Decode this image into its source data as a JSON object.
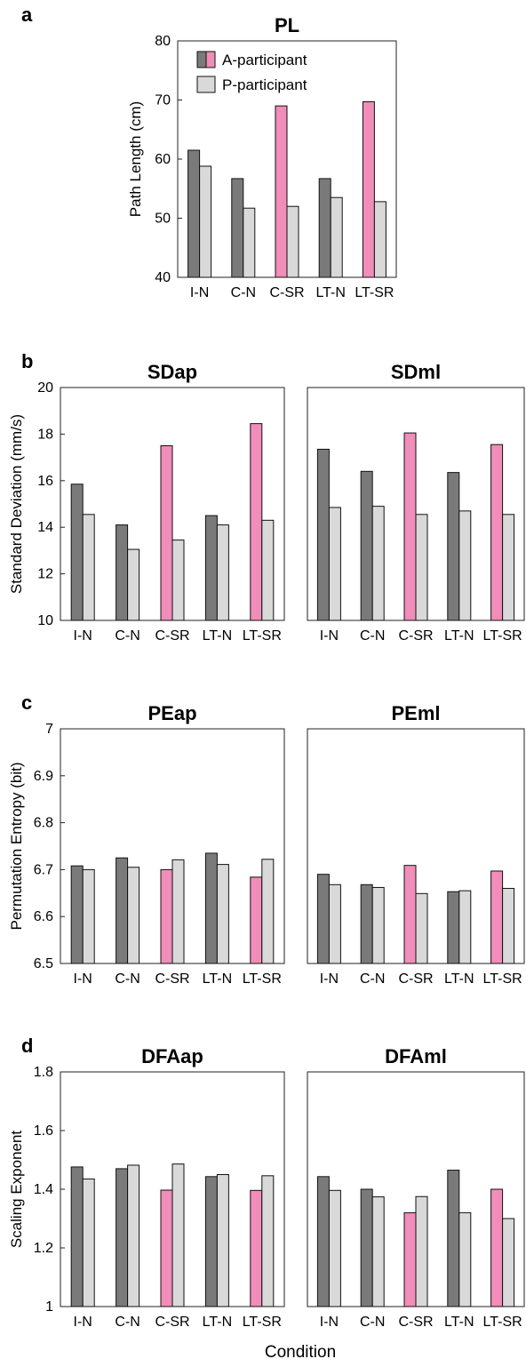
{
  "figure": {
    "xlabel": "Condition",
    "legend": {
      "placement": "top-left",
      "entries": [
        "A-participant",
        "P-participant"
      ]
    },
    "colors": {
      "a_normal": "#7a7a7a",
      "a_highlight": "#f08db8",
      "p": "#d9d9d9",
      "edge": "#111111"
    }
  },
  "chart_data": [
    {
      "panel": "a",
      "type": "bar",
      "title": "PL",
      "ylabel": "Path Length (cm)",
      "ylim": [
        40,
        80
      ],
      "yticks": [
        "40",
        "50",
        "60",
        "70",
        "80"
      ],
      "categories": [
        "I-N",
        "C-N",
        "C-SR",
        "LT-N",
        "LT-SR"
      ],
      "highlight_categories": [
        "C-SR",
        "LT-SR"
      ],
      "series": [
        {
          "name": "A-participant",
          "values": [
            61.5,
            56.7,
            69.0,
            56.7,
            69.7
          ]
        },
        {
          "name": "P-participant",
          "values": [
            58.8,
            51.7,
            52.0,
            53.5,
            52.8
          ]
        }
      ],
      "legend": true
    },
    {
      "panel": "b",
      "type": "bar",
      "title": "SDap",
      "ylabel": "Standard Deviation (mm/s)",
      "ylim": [
        10,
        20
      ],
      "yticks": [
        "10",
        "12",
        "14",
        "16",
        "18",
        "20"
      ],
      "categories": [
        "I-N",
        "C-N",
        "C-SR",
        "LT-N",
        "LT-SR"
      ],
      "highlight_categories": [
        "C-SR",
        "LT-SR"
      ],
      "series": [
        {
          "name": "A-participant",
          "values": [
            15.85,
            14.1,
            17.5,
            14.5,
            18.45
          ]
        },
        {
          "name": "P-participant",
          "values": [
            14.55,
            13.05,
            13.45,
            14.1,
            14.3
          ]
        }
      ]
    },
    {
      "panel": "",
      "type": "bar",
      "title": "SDml",
      "ylabel": "",
      "ylim": [
        10,
        20
      ],
      "yticks": [],
      "categories": [
        "I-N",
        "C-N",
        "C-SR",
        "LT-N",
        "LT-SR"
      ],
      "highlight_categories": [
        "C-SR",
        "LT-SR"
      ],
      "series": [
        {
          "name": "A-participant",
          "values": [
            17.35,
            16.4,
            18.05,
            16.35,
            17.55
          ]
        },
        {
          "name": "P-participant",
          "values": [
            14.85,
            14.9,
            14.55,
            14.7,
            14.55
          ]
        }
      ]
    },
    {
      "panel": "c",
      "type": "bar",
      "title": "PEap",
      "ylabel": "Permutation Entropy (bit)",
      "ylim": [
        6.5,
        7
      ],
      "yticks": [
        "6.5",
        "6.6",
        "6.7",
        "6.8",
        "6.9",
        "7"
      ],
      "categories": [
        "I-N",
        "C-N",
        "C-SR",
        "LT-N",
        "LT-SR"
      ],
      "highlight_categories": [
        "C-SR",
        "LT-SR"
      ],
      "series": [
        {
          "name": "A-participant",
          "values": [
            6.708,
            6.725,
            6.7,
            6.735,
            6.684
          ]
        },
        {
          "name": "P-participant",
          "values": [
            6.7,
            6.705,
            6.721,
            6.711,
            6.722
          ]
        }
      ]
    },
    {
      "panel": "",
      "type": "bar",
      "title": "PEml",
      "ylabel": "",
      "ylim": [
        6.5,
        7
      ],
      "yticks": [],
      "categories": [
        "I-N",
        "C-N",
        "C-SR",
        "LT-N",
        "LT-SR"
      ],
      "highlight_categories": [
        "C-SR",
        "LT-SR"
      ],
      "series": [
        {
          "name": "A-participant",
          "values": [
            6.69,
            6.668,
            6.709,
            6.653,
            6.697
          ]
        },
        {
          "name": "P-participant",
          "values": [
            6.668,
            6.662,
            6.649,
            6.655,
            6.66
          ]
        }
      ]
    },
    {
      "panel": "d",
      "type": "bar",
      "title": "DFAap",
      "ylabel": "Scaling Exponent",
      "ylim": [
        1,
        1.8
      ],
      "yticks": [
        "1",
        "1.2",
        "1.4",
        "1.6",
        "1.8"
      ],
      "categories": [
        "I-N",
        "C-N",
        "C-SR",
        "LT-N",
        "LT-SR"
      ],
      "highlight_categories": [
        "C-SR",
        "LT-SR"
      ],
      "series": [
        {
          "name": "A-participant",
          "values": [
            1.476,
            1.47,
            1.397,
            1.443,
            1.396
          ]
        },
        {
          "name": "P-participant",
          "values": [
            1.435,
            1.482,
            1.486,
            1.45,
            1.446
          ]
        }
      ]
    },
    {
      "panel": "",
      "type": "bar",
      "title": "DFAml",
      "ylabel": "",
      "ylim": [
        1,
        1.8
      ],
      "yticks": [],
      "categories": [
        "I-N",
        "C-N",
        "C-SR",
        "LT-N",
        "LT-SR"
      ],
      "highlight_categories": [
        "C-SR",
        "LT-SR"
      ],
      "series": [
        {
          "name": "A-participant",
          "values": [
            1.443,
            1.4,
            1.32,
            1.465,
            1.4
          ]
        },
        {
          "name": "P-participant",
          "values": [
            1.396,
            1.374,
            1.375,
            1.32,
            1.3
          ]
        }
      ]
    }
  ]
}
